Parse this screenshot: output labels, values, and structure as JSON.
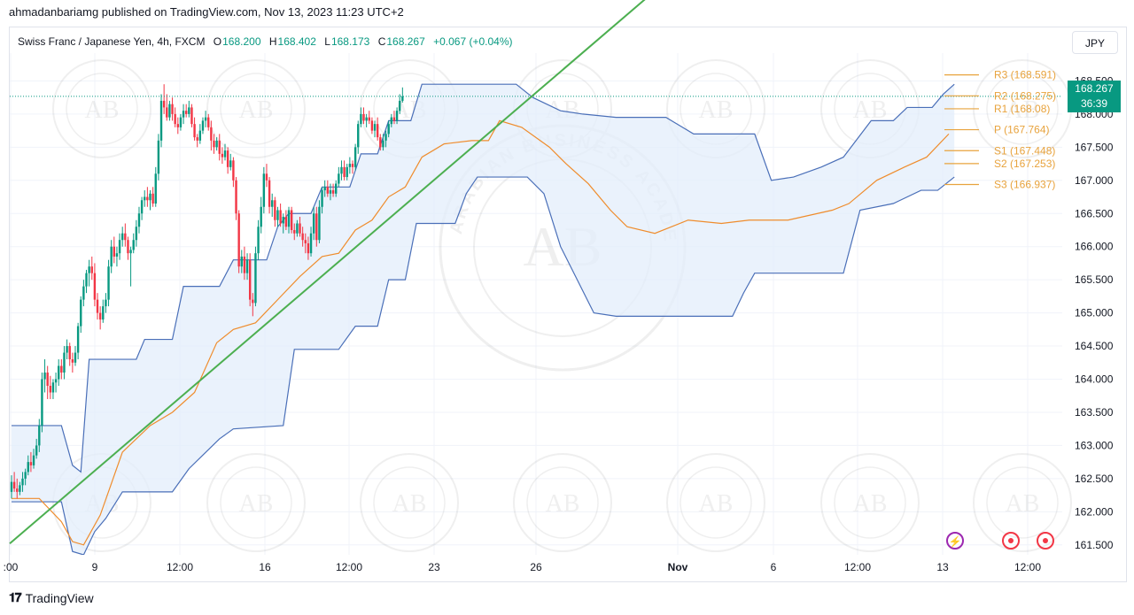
{
  "publisher_line": "ahmadanbariamg published on TradingView.com, Nov 13, 2023 11:23 UTC+2",
  "symbol": {
    "name": "Swiss Franc / Japanese Yen, 4h, FXCM",
    "open_label": "O",
    "open": "168.200",
    "high_label": "H",
    "high": "168.402",
    "low_label": "L",
    "low": "168.173",
    "close_label": "C",
    "close": "168.267",
    "change": "+0.067 (+0.04%)"
  },
  "currency_button": "JPY",
  "price_tag": {
    "price": "168.267",
    "countdown": "36:39"
  },
  "footer_brand": "TradingView",
  "watermark_text": "ARABIAN BUSINESS ACADEMY",
  "watermark_logo": "AB",
  "colors": {
    "up": "#089981",
    "down": "#f23645",
    "channel": "#4a6fb8",
    "basis": "#ef8c2c",
    "channel_fill": "#e3eefb",
    "trendline": "#4caf50",
    "pivot": "#e8a33d",
    "grid": "#f0f3fa"
  },
  "icons": [
    "lightning-icon",
    "event-dot-icon",
    "event-dot-icon"
  ],
  "chart_data": {
    "type": "candlestick",
    "timeframe": "4h",
    "ylim": [
      161.35,
      168.92
    ],
    "x_ticks": [
      ":00",
      "9",
      "12:00",
      "16",
      "12:00",
      "23",
      "26",
      "Nov",
      "6",
      "12:00",
      "13",
      "12:00"
    ],
    "y_ticks": [
      "168.500",
      "168.000",
      "167.500",
      "167.000",
      "166.500",
      "166.000",
      "165.500",
      "165.000",
      "164.500",
      "164.000",
      "163.500",
      "163.000",
      "162.500",
      "162.000",
      "161.500"
    ],
    "pivots": [
      {
        "label": "R3 (168.591)",
        "value": 168.591
      },
      {
        "label": "R2 (168.275)",
        "value": 168.275
      },
      {
        "label": "R1 (168.08)",
        "value": 168.08
      },
      {
        "label": "P (167.764)",
        "value": 167.764
      },
      {
        "label": "S1 (167.448)",
        "value": 167.448
      },
      {
        "label": "S2 (167.253)",
        "value": 167.253
      },
      {
        "label": "S3 (166.937)",
        "value": 166.937
      }
    ],
    "trendline": {
      "start": {
        "bar": 0,
        "value": 161.52
      },
      "end": {
        "bar": 162,
        "value": 167.35
      }
    },
    "candles": [
      [
        162.3,
        162.55,
        162.2,
        162.45
      ],
      [
        162.45,
        162.6,
        162.3,
        162.35
      ],
      [
        162.35,
        162.5,
        162.2,
        162.3
      ],
      [
        162.3,
        162.45,
        162.25,
        162.4
      ],
      [
        162.4,
        162.6,
        162.3,
        162.5
      ],
      [
        162.5,
        162.65,
        162.4,
        162.6
      ],
      [
        162.6,
        162.85,
        162.55,
        162.75
      ],
      [
        162.75,
        162.9,
        162.6,
        162.7
      ],
      [
        162.7,
        162.95,
        162.65,
        162.85
      ],
      [
        162.85,
        163.1,
        162.8,
        163.0
      ],
      [
        163.0,
        163.4,
        162.9,
        163.3
      ],
      [
        163.3,
        164.1,
        163.2,
        164.0
      ],
      [
        164.0,
        164.3,
        163.8,
        164.1
      ],
      [
        164.1,
        164.2,
        163.7,
        163.9
      ],
      [
        163.9,
        164.05,
        163.7,
        163.8
      ],
      [
        163.8,
        164.0,
        163.7,
        163.95
      ],
      [
        163.95,
        164.1,
        163.8,
        164.0
      ],
      [
        164.0,
        164.3,
        163.9,
        164.2
      ],
      [
        164.2,
        164.3,
        164.0,
        164.1
      ],
      [
        164.1,
        164.5,
        164.0,
        164.4
      ],
      [
        164.4,
        164.6,
        164.3,
        164.5
      ],
      [
        164.5,
        164.55,
        164.2,
        164.3
      ],
      [
        164.3,
        164.4,
        164.1,
        164.25
      ],
      [
        164.25,
        164.5,
        164.2,
        164.4
      ],
      [
        164.4,
        164.85,
        164.3,
        164.8
      ],
      [
        164.8,
        165.25,
        164.7,
        165.2
      ],
      [
        165.2,
        165.5,
        165.1,
        165.4
      ],
      [
        165.4,
        165.65,
        165.3,
        165.6
      ],
      [
        165.6,
        165.8,
        165.4,
        165.7
      ],
      [
        165.7,
        165.85,
        165.5,
        165.6
      ],
      [
        165.6,
        165.75,
        165.1,
        165.2
      ],
      [
        165.2,
        165.3,
        164.9,
        165.0
      ],
      [
        165.0,
        165.1,
        164.75,
        164.9
      ],
      [
        164.9,
        165.2,
        164.85,
        165.1
      ],
      [
        165.1,
        165.3,
        165.0,
        165.2
      ],
      [
        165.2,
        165.8,
        165.1,
        165.7
      ],
      [
        165.7,
        166.1,
        165.6,
        166.0
      ],
      [
        166.0,
        166.15,
        165.75,
        165.85
      ],
      [
        165.85,
        166.0,
        165.7,
        165.9
      ],
      [
        165.9,
        166.2,
        165.8,
        166.1
      ],
      [
        166.1,
        166.3,
        166.0,
        166.2
      ],
      [
        166.2,
        166.35,
        166.0,
        166.1
      ],
      [
        166.1,
        166.15,
        165.8,
        165.9
      ],
      [
        165.9,
        166.0,
        165.4,
        165.95
      ],
      [
        165.95,
        166.2,
        165.9,
        166.1
      ],
      [
        166.1,
        166.4,
        166.0,
        166.3
      ],
      [
        166.3,
        166.6,
        166.2,
        166.5
      ],
      [
        166.5,
        166.75,
        166.4,
        166.7
      ],
      [
        166.7,
        166.85,
        166.6,
        166.75
      ],
      [
        166.75,
        166.9,
        166.6,
        166.7
      ],
      [
        166.7,
        166.85,
        166.55,
        166.8
      ],
      [
        166.8,
        166.9,
        166.6,
        166.65
      ],
      [
        166.65,
        167.2,
        166.6,
        167.1
      ],
      [
        167.1,
        167.7,
        167.0,
        167.6
      ],
      [
        167.6,
        168.3,
        167.5,
        168.2
      ],
      [
        168.2,
        168.45,
        168.0,
        168.1
      ],
      [
        168.1,
        168.3,
        167.9,
        167.95
      ],
      [
        167.95,
        168.2,
        167.9,
        168.15
      ],
      [
        168.15,
        168.25,
        167.9,
        168.0
      ],
      [
        168.0,
        168.1,
        167.8,
        167.85
      ],
      [
        167.85,
        167.95,
        167.7,
        167.8
      ],
      [
        167.8,
        168.0,
        167.75,
        167.95
      ],
      [
        167.95,
        168.15,
        167.85,
        168.05
      ],
      [
        168.05,
        168.15,
        167.95,
        168.0
      ],
      [
        168.0,
        168.2,
        167.95,
        168.1
      ],
      [
        168.1,
        168.15,
        167.8,
        167.85
      ],
      [
        167.85,
        167.95,
        167.6,
        167.65
      ],
      [
        167.65,
        167.7,
        167.5,
        167.6
      ],
      [
        167.6,
        167.85,
        167.55,
        167.75
      ],
      [
        167.75,
        167.95,
        167.7,
        167.9
      ],
      [
        167.9,
        168.05,
        167.8,
        167.95
      ],
      [
        167.95,
        168.0,
        167.75,
        167.8
      ],
      [
        167.8,
        167.9,
        167.45,
        167.6
      ],
      [
        167.6,
        167.7,
        167.4,
        167.5
      ],
      [
        167.5,
        167.65,
        167.45,
        167.6
      ],
      [
        167.6,
        167.7,
        167.3,
        167.4
      ],
      [
        167.4,
        167.5,
        167.25,
        167.35
      ],
      [
        167.35,
        167.55,
        167.3,
        167.45
      ],
      [
        167.45,
        167.5,
        167.1,
        167.2
      ],
      [
        167.2,
        167.4,
        167.15,
        167.3
      ],
      [
        167.3,
        167.35,
        166.9,
        167.0
      ],
      [
        167.0,
        167.05,
        166.4,
        166.5
      ],
      [
        166.5,
        166.55,
        165.6,
        165.7
      ],
      [
        165.7,
        165.95,
        165.6,
        165.85
      ],
      [
        165.85,
        166.0,
        165.5,
        165.6
      ],
      [
        165.6,
        165.9,
        165.5,
        165.8
      ],
      [
        165.8,
        165.9,
        165.1,
        165.2
      ],
      [
        165.2,
        165.3,
        164.95,
        165.15
      ],
      [
        165.15,
        166.0,
        165.1,
        165.9
      ],
      [
        165.9,
        166.4,
        165.8,
        166.3
      ],
      [
        166.3,
        166.75,
        166.2,
        166.6
      ],
      [
        166.6,
        167.2,
        166.5,
        167.1
      ],
      [
        167.1,
        167.25,
        166.9,
        167.0
      ],
      [
        167.0,
        167.05,
        166.5,
        166.6
      ],
      [
        166.6,
        166.8,
        166.45,
        166.7
      ],
      [
        166.7,
        166.75,
        166.3,
        166.4
      ],
      [
        166.4,
        166.6,
        166.3,
        166.55
      ],
      [
        166.55,
        166.65,
        166.3,
        166.35
      ],
      [
        166.35,
        166.5,
        166.2,
        166.45
      ],
      [
        166.45,
        166.55,
        166.25,
        166.3
      ],
      [
        166.3,
        166.6,
        166.2,
        166.55
      ],
      [
        166.55,
        166.6,
        166.2,
        166.25
      ],
      [
        166.25,
        166.35,
        166.1,
        166.2
      ],
      [
        166.2,
        166.4,
        166.15,
        166.35
      ],
      [
        166.35,
        166.45,
        166.15,
        166.2
      ],
      [
        166.2,
        166.3,
        166.0,
        166.1
      ],
      [
        166.1,
        166.2,
        165.9,
        166.05
      ],
      [
        166.05,
        166.15,
        165.8,
        165.9
      ],
      [
        165.9,
        166.3,
        165.85,
        166.2
      ],
      [
        166.2,
        166.6,
        166.1,
        166.5
      ],
      [
        166.5,
        166.6,
        166.0,
        166.1
      ],
      [
        166.1,
        166.7,
        166.05,
        166.6
      ],
      [
        166.6,
        166.9,
        166.5,
        166.85
      ],
      [
        166.85,
        167.0,
        166.75,
        166.9
      ],
      [
        166.9,
        167.0,
        166.75,
        166.8
      ],
      [
        166.8,
        166.95,
        166.7,
        166.85
      ],
      [
        166.85,
        166.95,
        166.75,
        166.8
      ],
      [
        166.8,
        167.0,
        166.75,
        166.95
      ],
      [
        166.95,
        167.2,
        166.9,
        167.1
      ],
      [
        167.1,
        167.3,
        167.0,
        167.2
      ],
      [
        167.2,
        167.3,
        167.0,
        167.05
      ],
      [
        167.05,
        167.25,
        167.0,
        167.2
      ],
      [
        167.2,
        167.35,
        167.1,
        167.25
      ],
      [
        167.25,
        167.3,
        167.1,
        167.2
      ],
      [
        167.2,
        167.55,
        167.15,
        167.5
      ],
      [
        167.5,
        167.9,
        167.4,
        167.85
      ],
      [
        167.85,
        168.1,
        167.8,
        168.0
      ],
      [
        168.0,
        168.1,
        167.85,
        167.9
      ],
      [
        167.9,
        168.0,
        167.8,
        167.95
      ],
      [
        167.95,
        168.05,
        167.85,
        167.9
      ],
      [
        167.9,
        167.95,
        167.7,
        167.75
      ],
      [
        167.75,
        167.9,
        167.65,
        167.85
      ],
      [
        167.85,
        167.95,
        167.6,
        167.65
      ],
      [
        167.65,
        167.7,
        167.45,
        167.5
      ],
      [
        167.5,
        167.7,
        167.45,
        167.6
      ],
      [
        167.6,
        167.75,
        167.5,
        167.7
      ],
      [
        167.7,
        167.9,
        167.65,
        167.85
      ],
      [
        167.85,
        168.0,
        167.8,
        167.95
      ],
      [
        167.95,
        168.05,
        167.85,
        167.9
      ],
      [
        167.9,
        168.1,
        167.85,
        168.05
      ],
      [
        168.05,
        168.3,
        168.0,
        168.2
      ],
      [
        168.2,
        168.402,
        168.173,
        168.267
      ]
    ],
    "channel_upper": [
      [
        0,
        163.3
      ],
      [
        18,
        163.3
      ],
      [
        22,
        162.7
      ],
      [
        25,
        162.6
      ],
      [
        28,
        164.3
      ],
      [
        45,
        164.3
      ],
      [
        48,
        164.6
      ],
      [
        58,
        164.6
      ],
      [
        62,
        165.4
      ],
      [
        75,
        165.4
      ],
      [
        80,
        165.8
      ],
      [
        92,
        165.8
      ],
      [
        96,
        166.3
      ],
      [
        100,
        166.5
      ],
      [
        108,
        166.5
      ],
      [
        112,
        166.9
      ],
      [
        122,
        166.9
      ],
      [
        126,
        167.4
      ],
      [
        132,
        167.4
      ],
      [
        136,
        167.9
      ],
      [
        144,
        167.9
      ],
      [
        148,
        168.45
      ],
      [
        182,
        168.45
      ],
      [
        188,
        168.25
      ],
      [
        198,
        168.05
      ],
      [
        206,
        168.0
      ],
      [
        218,
        167.95
      ],
      [
        236,
        167.95
      ],
      [
        246,
        167.7
      ],
      [
        268,
        167.7
      ],
      [
        274,
        167.0
      ],
      [
        282,
        167.05
      ],
      [
        292,
        167.2
      ],
      [
        300,
        167.35
      ],
      [
        310,
        167.9
      ],
      [
        318,
        167.9
      ],
      [
        323,
        168.1
      ],
      [
        332,
        168.1
      ],
      [
        336,
        168.3
      ],
      [
        340,
        168.45
      ]
    ],
    "channel_lower": [
      [
        0,
        162.15
      ],
      [
        18,
        162.15
      ],
      [
        22,
        161.4
      ],
      [
        26,
        161.35
      ],
      [
        30,
        161.7
      ],
      [
        34,
        161.9
      ],
      [
        40,
        162.3
      ],
      [
        58,
        162.3
      ],
      [
        64,
        162.65
      ],
      [
        75,
        163.1
      ],
      [
        80,
        163.25
      ],
      [
        98,
        163.3
      ],
      [
        102,
        164.45
      ],
      [
        118,
        164.45
      ],
      [
        124,
        164.8
      ],
      [
        132,
        164.8
      ],
      [
        136,
        165.5
      ],
      [
        142,
        165.5
      ],
      [
        146,
        166.35
      ],
      [
        160,
        166.35
      ],
      [
        164,
        166.8
      ],
      [
        168,
        167.05
      ],
      [
        175,
        167.05
      ],
      [
        182,
        167.05
      ],
      [
        186,
        167.05
      ],
      [
        192,
        166.8
      ],
      [
        198,
        166.0
      ],
      [
        204,
        165.5
      ],
      [
        210,
        165.0
      ],
      [
        218,
        164.95
      ],
      [
        260,
        164.95
      ],
      [
        264,
        165.3
      ],
      [
        268,
        165.6
      ],
      [
        300,
        165.6
      ],
      [
        306,
        166.55
      ],
      [
        318,
        166.65
      ],
      [
        328,
        166.85
      ],
      [
        334,
        166.85
      ],
      [
        340,
        167.05
      ]
    ],
    "basis": [
      [
        0,
        162.2
      ],
      [
        10,
        162.2
      ],
      [
        18,
        161.85
      ],
      [
        22,
        161.55
      ],
      [
        26,
        161.5
      ],
      [
        32,
        161.95
      ],
      [
        40,
        162.9
      ],
      [
        50,
        163.3
      ],
      [
        58,
        163.5
      ],
      [
        66,
        163.8
      ],
      [
        74,
        164.55
      ],
      [
        80,
        164.75
      ],
      [
        88,
        164.85
      ],
      [
        96,
        165.2
      ],
      [
        104,
        165.55
      ],
      [
        112,
        165.85
      ],
      [
        118,
        165.9
      ],
      [
        124,
        166.25
      ],
      [
        130,
        166.4
      ],
      [
        136,
        166.75
      ],
      [
        142,
        166.9
      ],
      [
        148,
        167.35
      ],
      [
        156,
        167.55
      ],
      [
        166,
        167.6
      ],
      [
        172,
        167.6
      ],
      [
        176,
        167.9
      ],
      [
        184,
        167.8
      ],
      [
        194,
        167.5
      ],
      [
        200,
        167.25
      ],
      [
        208,
        166.95
      ],
      [
        216,
        166.55
      ],
      [
        222,
        166.3
      ],
      [
        232,
        166.2
      ],
      [
        244,
        166.4
      ],
      [
        256,
        166.35
      ],
      [
        266,
        166.4
      ],
      [
        280,
        166.4
      ],
      [
        296,
        166.55
      ],
      [
        302,
        166.65
      ],
      [
        312,
        167.0
      ],
      [
        322,
        167.2
      ],
      [
        330,
        167.35
      ],
      [
        338,
        167.7
      ]
    ]
  }
}
